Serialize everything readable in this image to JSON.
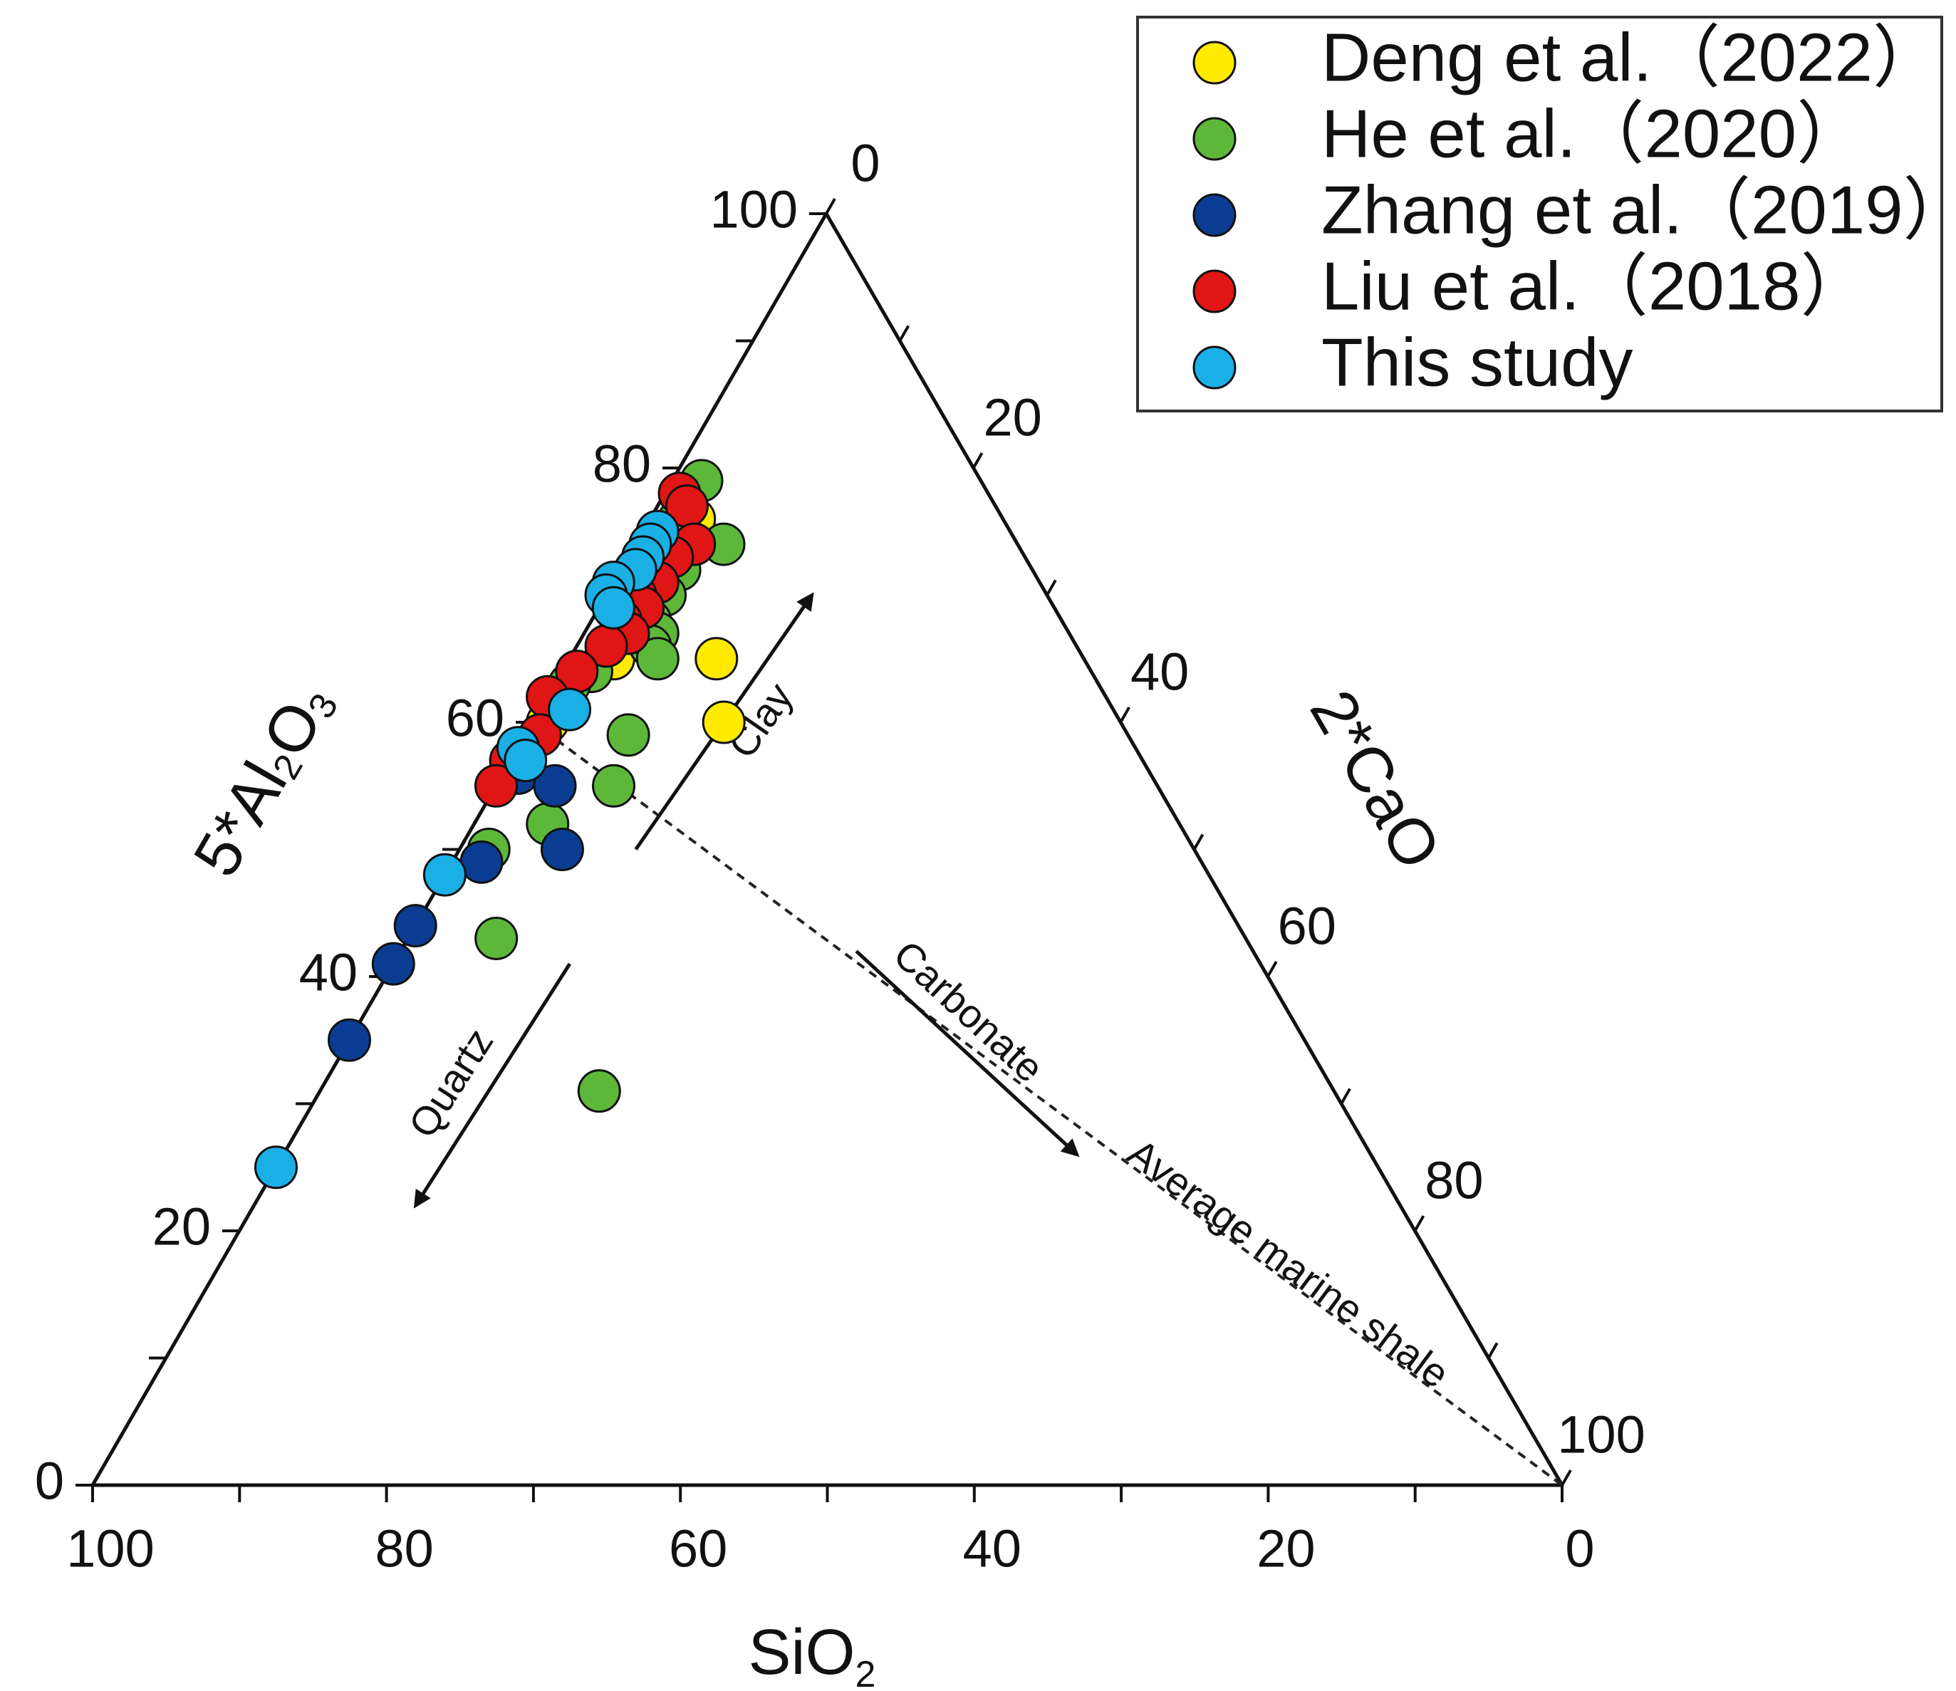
{
  "chart_data": {
    "type": "ternary-scatter",
    "axes": {
      "a": {
        "label_main": "5*Al",
        "label_sub1": "2",
        "label_mid": "O",
        "label_sub2": "3",
        "ticks": [
          "0",
          "20",
          "40",
          "60",
          "80",
          "100"
        ]
      },
      "b": {
        "label_main": "2*CaO",
        "ticks": [
          "0",
          "20",
          "40",
          "60",
          "80",
          "100"
        ]
      },
      "c": {
        "label_main": "SiO",
        "label_sub": "2",
        "ticks": [
          "100",
          "80",
          "60",
          "40",
          "20",
          "0"
        ]
      }
    },
    "reference_line": {
      "label": "Average marine shale",
      "from": {
        "a": 60,
        "b": 0,
        "c": 40
      },
      "to": {
        "a": 0,
        "b": 100,
        "c": 0
      }
    },
    "arrows": [
      {
        "label": "Clay",
        "from": {
          "a": 50,
          "b": 12,
          "c": 38
        },
        "to": {
          "a": 70,
          "b": 14,
          "c": 16
        }
      },
      {
        "label": "Carbonate",
        "from": {
          "a": 42,
          "b": 31,
          "c": 27
        },
        "to": {
          "a": 26,
          "b": 54,
          "c": 20
        }
      },
      {
        "label": "Quartz",
        "from": {
          "a": 41,
          "b": 12,
          "c": 47
        },
        "to": {
          "a": 22,
          "b": 11,
          "c": 67
        }
      }
    ],
    "legend": {
      "position": "top-right"
    },
    "series": [
      {
        "name": "Deng et al.（2022）",
        "color": "#ffea00",
        "points": [
          [
            74,
            3,
            23
          ],
          [
            76,
            3,
            21
          ],
          [
            68,
            2,
            30
          ],
          [
            65,
            3,
            32
          ],
          [
            60,
            1,
            39
          ],
          [
            65,
            10,
            25
          ],
          [
            60,
            13,
            27
          ]
        ]
      },
      {
        "name": "He et al.（2020）",
        "color": "#5db83a",
        "points": [
          [
            79,
            2,
            19
          ],
          [
            76,
            2,
            22
          ],
          [
            74,
            6,
            20
          ],
          [
            73,
            3,
            24
          ],
          [
            72,
            4,
            24
          ],
          [
            70,
            4,
            26
          ],
          [
            68,
            4,
            28
          ],
          [
            67,
            5,
            28
          ],
          [
            66,
            5,
            29
          ],
          [
            65,
            6,
            29
          ],
          [
            64,
            2,
            34
          ],
          [
            63,
            1,
            36
          ],
          [
            59,
            7,
            34
          ],
          [
            55,
            8,
            37
          ],
          [
            52,
            5,
            43
          ],
          [
            50,
            2,
            48
          ],
          [
            43,
            6,
            51
          ],
          [
            31,
            19,
            50
          ]
        ]
      },
      {
        "name": "Zhang et al.（2019）",
        "color": "#0a3d91",
        "points": [
          [
            56,
            1,
            43
          ],
          [
            55,
            4,
            41
          ],
          [
            49,
            2,
            49
          ],
          [
            50,
            7,
            43
          ],
          [
            44,
            0,
            56
          ],
          [
            41,
            0,
            59
          ],
          [
            35,
            0,
            65
          ]
        ]
      },
      {
        "name": "Liu et al.（2018）",
        "color": "#e01515",
        "points": [
          [
            78,
            1,
            21
          ],
          [
            77,
            2,
            21
          ],
          [
            74,
            4,
            22
          ],
          [
            73,
            3,
            24
          ],
          [
            72,
            1,
            27
          ],
          [
            71,
            3,
            26
          ],
          [
            70,
            2,
            28
          ],
          [
            69,
            3,
            28
          ],
          [
            68,
            2,
            30
          ],
          [
            67,
            3,
            30
          ],
          [
            66,
            2,
            32
          ],
          [
            64,
            1,
            35
          ],
          [
            62,
            0,
            38
          ],
          [
            59,
            1,
            40
          ],
          [
            57,
            0,
            43
          ],
          [
            55,
            0,
            45
          ]
        ]
      },
      {
        "name": "This study",
        "color": "#1ab0e6",
        "points": [
          [
            75,
            1,
            24
          ],
          [
            74,
            1,
            25
          ],
          [
            73,
            1,
            26
          ],
          [
            72,
            1,
            27
          ],
          [
            71,
            0,
            29
          ],
          [
            70,
            0,
            30
          ],
          [
            69,
            1,
            30
          ],
          [
            61,
            2,
            37
          ],
          [
            58,
            0,
            42
          ],
          [
            57,
            1,
            42
          ],
          [
            48,
            0,
            52
          ],
          [
            25,
            0,
            75
          ]
        ]
      }
    ]
  }
}
